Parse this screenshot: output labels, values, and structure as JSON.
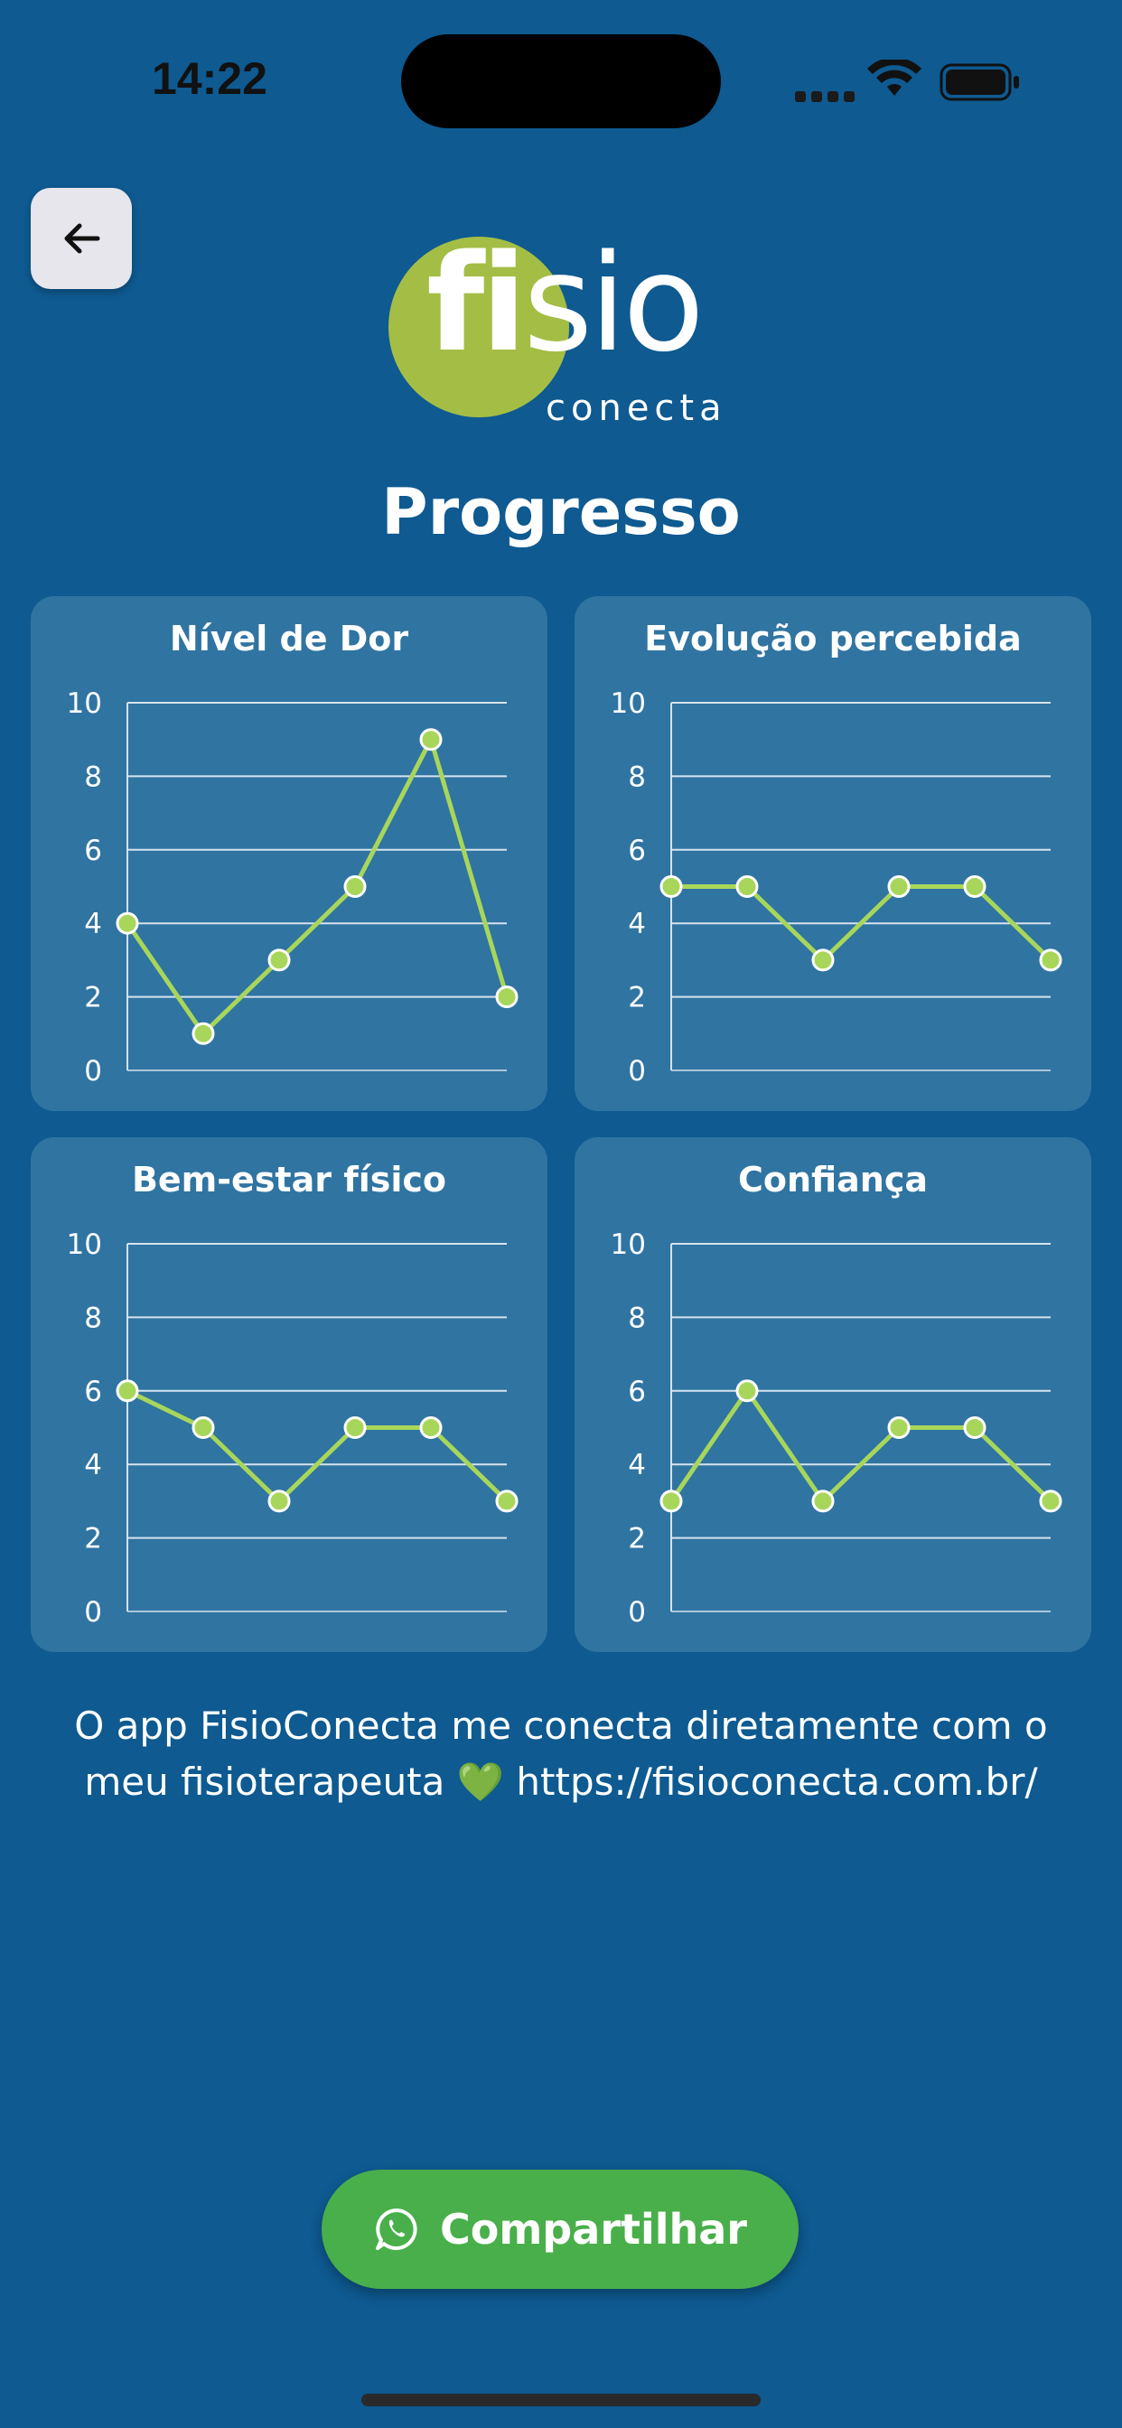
{
  "status_bar": {
    "time": "14:22"
  },
  "header": {
    "logo_main": "fisio",
    "logo_sub": "conecta",
    "title": "Progresso"
  },
  "chart_data": [
    {
      "type": "line",
      "title": "Nível de Dor",
      "x": [
        1,
        2,
        3,
        4,
        5,
        6
      ],
      "values": [
        4,
        1,
        3,
        5,
        9,
        2
      ],
      "ylim": [
        0,
        10
      ],
      "yticks": [
        0,
        2,
        4,
        6,
        8,
        10
      ]
    },
    {
      "type": "line",
      "title": "Evolução percebida",
      "x": [
        1,
        2,
        3,
        4,
        5,
        6
      ],
      "values": [
        5,
        5,
        3,
        5,
        5,
        3
      ],
      "ylim": [
        0,
        10
      ],
      "yticks": [
        0,
        2,
        4,
        6,
        8,
        10
      ]
    },
    {
      "type": "line",
      "title": "Bem-estar físico",
      "x": [
        1,
        2,
        3,
        4,
        5,
        6
      ],
      "values": [
        6,
        5,
        3,
        5,
        5,
        3
      ],
      "ylim": [
        0,
        10
      ],
      "yticks": [
        0,
        2,
        4,
        6,
        8,
        10
      ]
    },
    {
      "type": "line",
      "title": "Confiança",
      "x": [
        1,
        2,
        3,
        4,
        5,
        6
      ],
      "values": [
        3,
        6,
        3,
        5,
        5,
        3
      ],
      "ylim": [
        0,
        10
      ],
      "yticks": [
        0,
        2,
        4,
        6,
        8,
        10
      ]
    }
  ],
  "colors": {
    "background": "#0E5A91",
    "card": "#3074A2",
    "line": "#A8D65A",
    "button": "#49AF4A",
    "logo_green": "#A4BD45"
  },
  "share": {
    "message_line1": "O app FisioConecta me conecta diretamente com o",
    "message_line2": "meu fisioterapeuta 💚  https://fisioconecta.com.br/",
    "button_label": "Compartilhar",
    "button_icon": "whatsapp-icon"
  }
}
